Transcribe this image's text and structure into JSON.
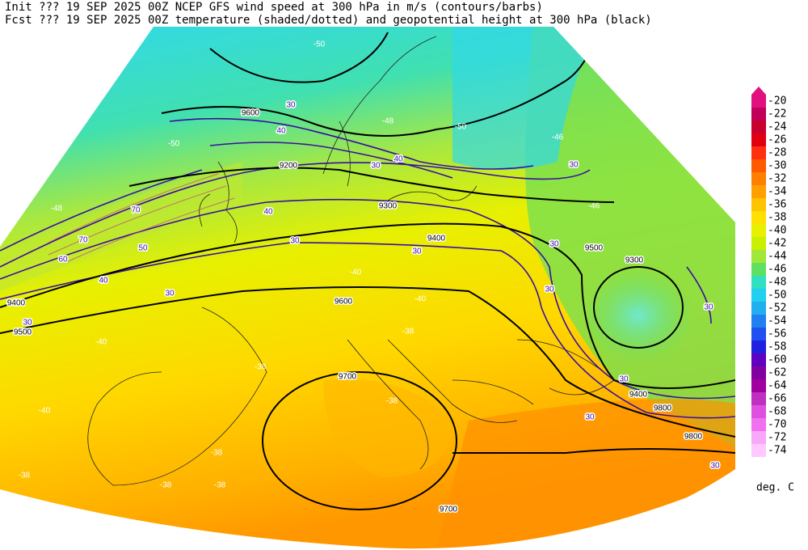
{
  "header": {
    "line1": "Init  ??? 19 SEP 2025 00Z  NCEP GFS wind speed at 300 hPa in m/s (contours/barbs)",
    "line2": "Fcst ??? 19 SEP 2025 00Z  temperature (shaded/dotted) and geopotential height at 300 hPa (black)"
  },
  "colorbar": {
    "ticks": [
      -20,
      -22,
      -24,
      -26,
      -28,
      -30,
      -32,
      -34,
      -36,
      -38,
      -40,
      -42,
      -44,
      -46,
      -48,
      -50,
      -52,
      -54,
      -56,
      -58,
      -60,
      -62,
      -64,
      -66,
      -68,
      -70,
      -72,
      -74
    ],
    "colors": [
      "#e0107f",
      "#c00058",
      "#c80030",
      "#e00010",
      "#ff3010",
      "#ff5a00",
      "#ff8000",
      "#ffa000",
      "#ffc400",
      "#ffe000",
      "#e8f000",
      "#c8f000",
      "#a0e838",
      "#60e060",
      "#30e0c0",
      "#20d0f0",
      "#20b0f0",
      "#2080f0",
      "#2050f0",
      "#2020e0",
      "#6000c0",
      "#8000a0",
      "#a000a0",
      "#c030c0",
      "#e050e0",
      "#f070f0",
      "#f8a8f8",
      "#ffc8ff"
    ],
    "unit": "deg. C"
  },
  "contour_labels": {
    "height": [
      "9200",
      "9300",
      "9400",
      "9500",
      "9600",
      "9700",
      "9700",
      "9800",
      "9800",
      "9300",
      "9500",
      "9400",
      "9600",
      "9400"
    ],
    "wind": [
      "30",
      "40",
      "30",
      "40",
      "40",
      "30",
      "30",
      "30",
      "30",
      "30",
      "30",
      "30",
      "40",
      "50",
      "60",
      "70",
      "70",
      "30",
      "30",
      "30",
      "30"
    ],
    "temperature": [
      "-50",
      "-50",
      "-48",
      "-40",
      "-40",
      "-38",
      "-38",
      "-40",
      "-40",
      "-38",
      "-38",
      "-38",
      "-38",
      "-38",
      "-46",
      "-46",
      "-48",
      "-50"
    ]
  }
}
